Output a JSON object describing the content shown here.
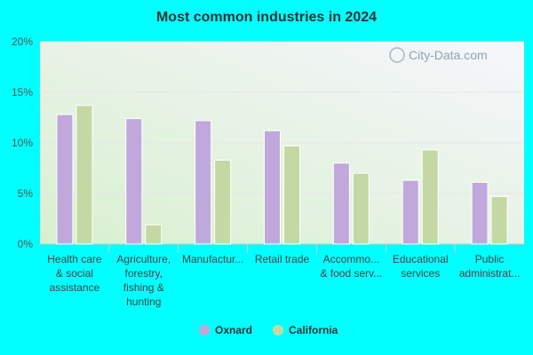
{
  "chart_data": {
    "type": "bar",
    "title": "Most common industries in 2024",
    "xlabel": "",
    "ylabel": "",
    "ylim": [
      0,
      20
    ],
    "yticks": [
      0,
      5,
      10,
      15,
      20
    ],
    "ytick_labels": [
      "0%",
      "5%",
      "10%",
      "15%",
      "20%"
    ],
    "grid": true,
    "legend": "bottom",
    "categories": [
      [
        "Health care",
        "& social",
        "assistance"
      ],
      [
        "Agriculture,",
        "forestry,",
        "fishing &",
        "hunting"
      ],
      [
        "Manufactur..."
      ],
      [
        "Retail trade"
      ],
      [
        "Accommo...",
        "& food serv..."
      ],
      [
        "Educational",
        "services"
      ],
      [
        "Public",
        "administrat..."
      ]
    ],
    "series": [
      {
        "name": "Oxnard",
        "color": "#c0a8dc",
        "values": [
          12.8,
          12.4,
          12.2,
          11.2,
          8.0,
          6.3,
          6.1
        ]
      },
      {
        "name": "California",
        "color": "#c4d8a4",
        "values": [
          13.7,
          1.9,
          8.3,
          9.7,
          7.0,
          9.3,
          4.7
        ]
      }
    ]
  },
  "watermark": "City-Data.com"
}
